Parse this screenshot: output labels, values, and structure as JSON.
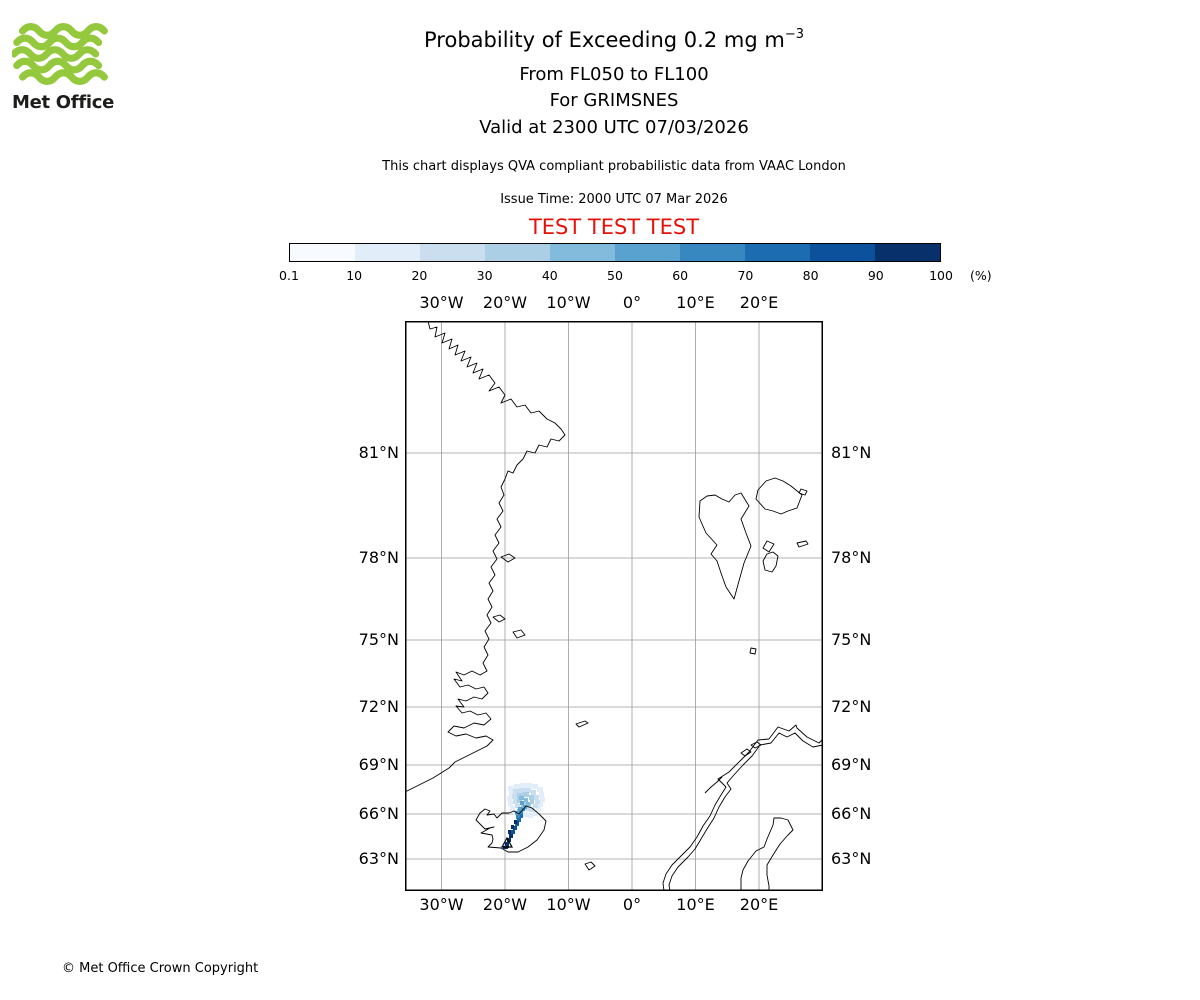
{
  "logo": {
    "text": "Met Office",
    "green": "#94c83d"
  },
  "header": {
    "title": "Probability of Exceeding 0.2 mg m",
    "title_sup": "−3",
    "subtitle_levels": "From FL050 to FL100",
    "subtitle_volcano": "For GRIMSNES",
    "subtitle_valid": "Valid at 2300 UTC 07/03/2026",
    "note": "This chart displays QVA compliant probabilistic data from VAAC London",
    "issue_time": "Issue Time: 2000 UTC 07 Mar 2026",
    "test_banner": "TEST TEST TEST",
    "test_color": "#e3120b"
  },
  "colorbar": {
    "tick_labels": [
      "0.1",
      "10",
      "20",
      "30",
      "40",
      "50",
      "60",
      "70",
      "80",
      "90",
      "100"
    ],
    "unit": "(%)",
    "colors": [
      "#f7fbff",
      "#e1edf8",
      "#cadef0",
      "#abd0e6",
      "#82bbdb",
      "#59a1cf",
      "#3787c0",
      "#1c6cb1",
      "#0b519c",
      "#08306b"
    ]
  },
  "map": {
    "lon_labels": [
      "30°W",
      "20°W",
      "10°W",
      "0°",
      "10°E",
      "20°E"
    ],
    "lat_labels": [
      "81°N",
      "78°N",
      "75°N",
      "72°N",
      "69°N",
      "66°N",
      "63°N"
    ],
    "prob_cells": [
      [
        103,
        465,
        6,
        5,
        1
      ],
      [
        109,
        463,
        6,
        5,
        1
      ],
      [
        115,
        462,
        6,
        5,
        1
      ],
      [
        121,
        462,
        6,
        5,
        1
      ],
      [
        127,
        463,
        6,
        5,
        1
      ],
      [
        132,
        466,
        6,
        5,
        1
      ],
      [
        134,
        471,
        5,
        5,
        1
      ],
      [
        135,
        476,
        5,
        5,
        1
      ],
      [
        133,
        481,
        5,
        5,
        1
      ],
      [
        131,
        486,
        5,
        5,
        1
      ],
      [
        128,
        490,
        5,
        5,
        1
      ],
      [
        123,
        492,
        5,
        5,
        1
      ],
      [
        118,
        491,
        5,
        5,
        1
      ],
      [
        104,
        470,
        5,
        5,
        1
      ],
      [
        102,
        475,
        5,
        5,
        1
      ],
      [
        103,
        480,
        5,
        5,
        1
      ],
      [
        105,
        485,
        5,
        5,
        1
      ],
      [
        108,
        489,
        5,
        5,
        1
      ],
      [
        113,
        492,
        5,
        4,
        1
      ],
      [
        108,
        468,
        6,
        5,
        2
      ],
      [
        114,
        467,
        6,
        5,
        2
      ],
      [
        120,
        467,
        6,
        5,
        2
      ],
      [
        126,
        469,
        5,
        5,
        2
      ],
      [
        129,
        474,
        5,
        5,
        2
      ],
      [
        130,
        479,
        5,
        4,
        2
      ],
      [
        128,
        483,
        5,
        4,
        2
      ],
      [
        124,
        487,
        5,
        4,
        2
      ],
      [
        119,
        486,
        5,
        4,
        2
      ],
      [
        107,
        473,
        5,
        5,
        2
      ],
      [
        108,
        478,
        5,
        5,
        2
      ],
      [
        110,
        483,
        5,
        4,
        2
      ],
      [
        114,
        487,
        5,
        4,
        2
      ],
      [
        112,
        472,
        6,
        5,
        3
      ],
      [
        118,
        471,
        6,
        5,
        3
      ],
      [
        124,
        474,
        5,
        5,
        3
      ],
      [
        125,
        479,
        4,
        4,
        3
      ],
      [
        122,
        483,
        4,
        4,
        3
      ],
      [
        112,
        477,
        5,
        5,
        3
      ],
      [
        116,
        481,
        5,
        4,
        3
      ],
      [
        114,
        475,
        5,
        4,
        4
      ],
      [
        119,
        477,
        4,
        4,
        4
      ],
      [
        121,
        481,
        4,
        4,
        4
      ],
      [
        116,
        485,
        4,
        4,
        4
      ],
      [
        112,
        488,
        4,
        4,
        4
      ],
      [
        115,
        480,
        4,
        4,
        5
      ],
      [
        118,
        484,
        4,
        4,
        5
      ],
      [
        113,
        486,
        4,
        4,
        5
      ],
      [
        110,
        490,
        4,
        4,
        5
      ],
      [
        114,
        490,
        4,
        4,
        6
      ],
      [
        111,
        494,
        4,
        4,
        6
      ],
      [
        117,
        487,
        3,
        3,
        6
      ],
      [
        112,
        497,
        4,
        4,
        7
      ],
      [
        115,
        493,
        3,
        4,
        7
      ],
      [
        110,
        501,
        4,
        4,
        7
      ],
      [
        108,
        505,
        4,
        4,
        8
      ],
      [
        111,
        500,
        3,
        4,
        8
      ],
      [
        106,
        509,
        4,
        4,
        8
      ],
      [
        104,
        513,
        4,
        4,
        9
      ],
      [
        102,
        517,
        4,
        4,
        9
      ],
      [
        100,
        521,
        4,
        4,
        9
      ],
      [
        103,
        509,
        3,
        4,
        9
      ],
      [
        106,
        504,
        3,
        4,
        9
      ],
      [
        109,
        499,
        3,
        4,
        9
      ],
      [
        98,
        525,
        5,
        3,
        9
      ],
      [
        101,
        524,
        3,
        3,
        9
      ]
    ]
  },
  "footer": {
    "copyright": "© Met Office Crown Copyright"
  }
}
